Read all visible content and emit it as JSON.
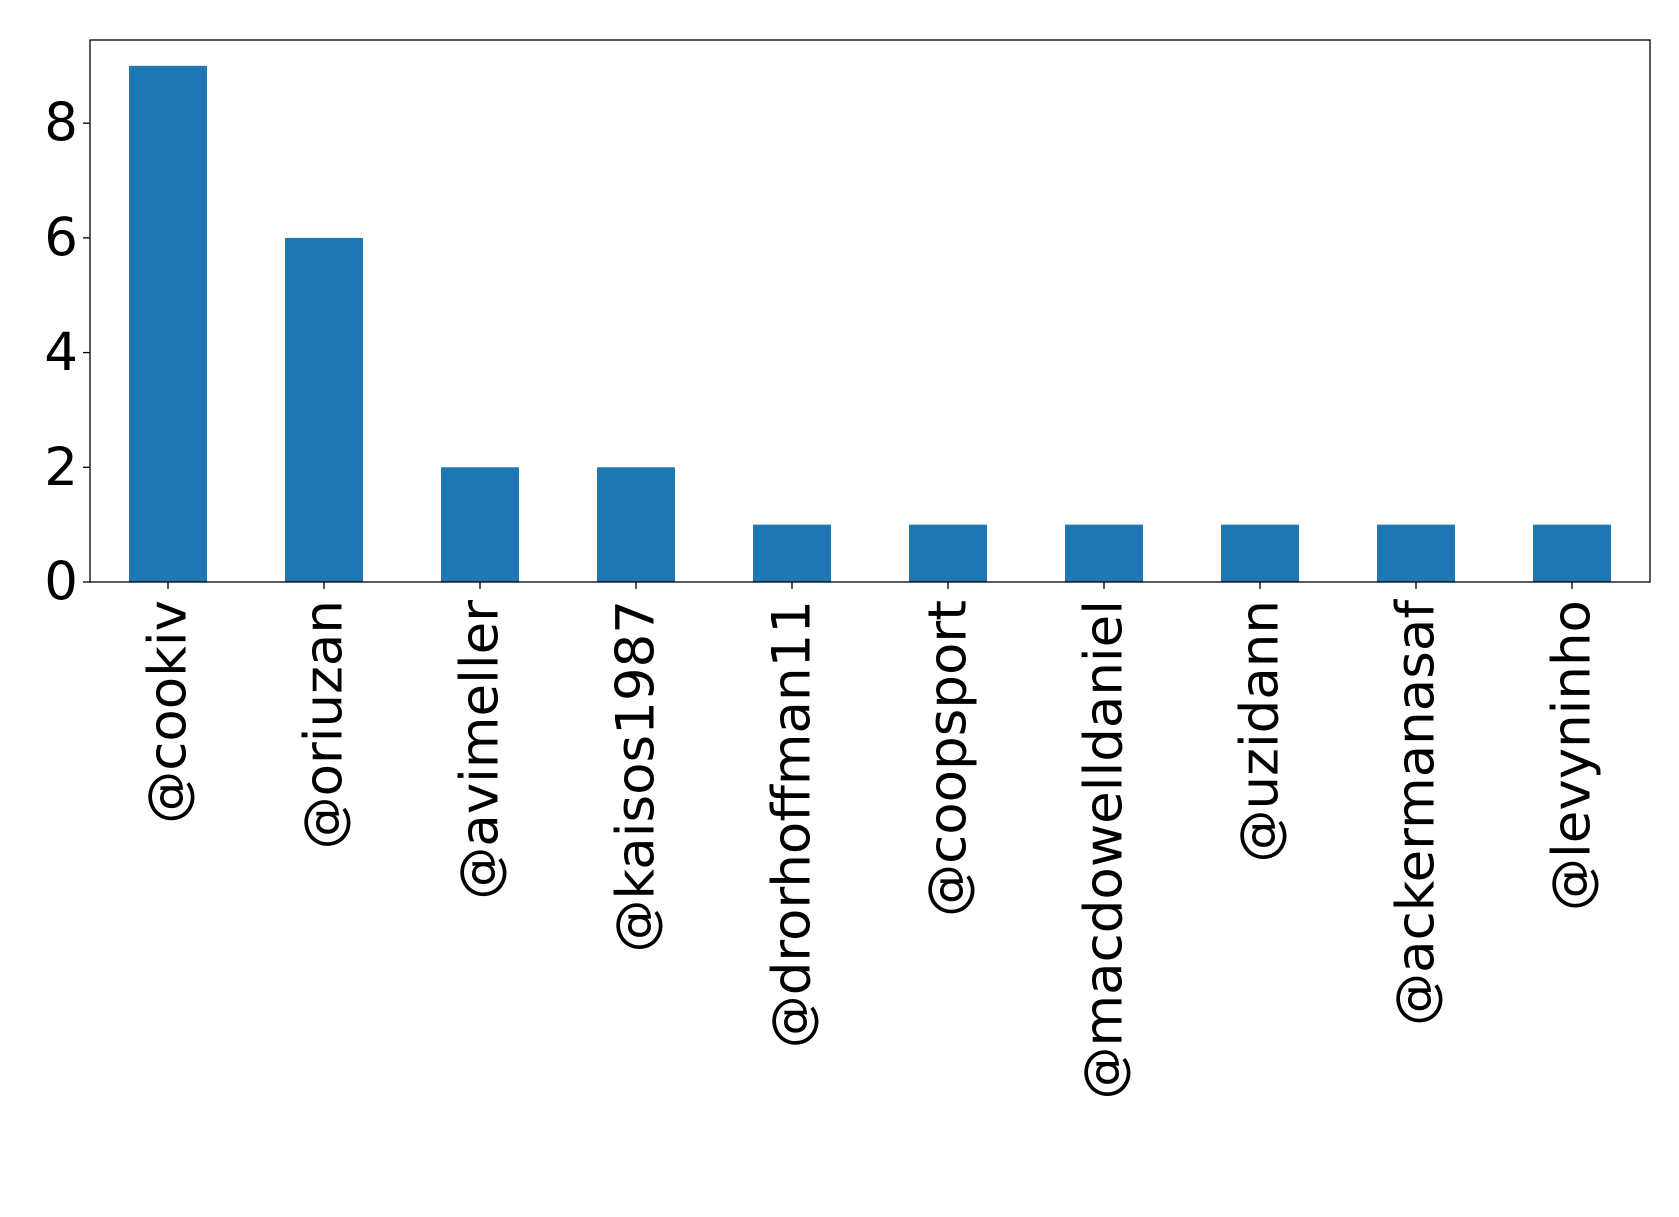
{
  "chart_data": {
    "type": "bar",
    "title": "",
    "xlabel": "",
    "ylabel": "",
    "categories": [
      "@cookiv",
      "@oriuzan",
      "@avimeller",
      "@kaisos1987",
      "@drorhoffman11",
      "@coopsport",
      "@macdowelldaniel",
      "@uzidann",
      "@ackermanasaf",
      "@levyninho"
    ],
    "values": [
      9,
      6,
      2,
      2,
      1,
      1,
      1,
      1,
      1,
      1
    ],
    "ylim": [
      0,
      9.45
    ],
    "yticks": [
      0,
      2,
      4,
      6,
      8
    ],
    "ytick_labels": [
      "0",
      "2",
      "4",
      "6",
      "8"
    ],
    "bar_color": "#1f77b4",
    "grid": false,
    "legend": "none",
    "xtick_rotation": "vertical"
  }
}
